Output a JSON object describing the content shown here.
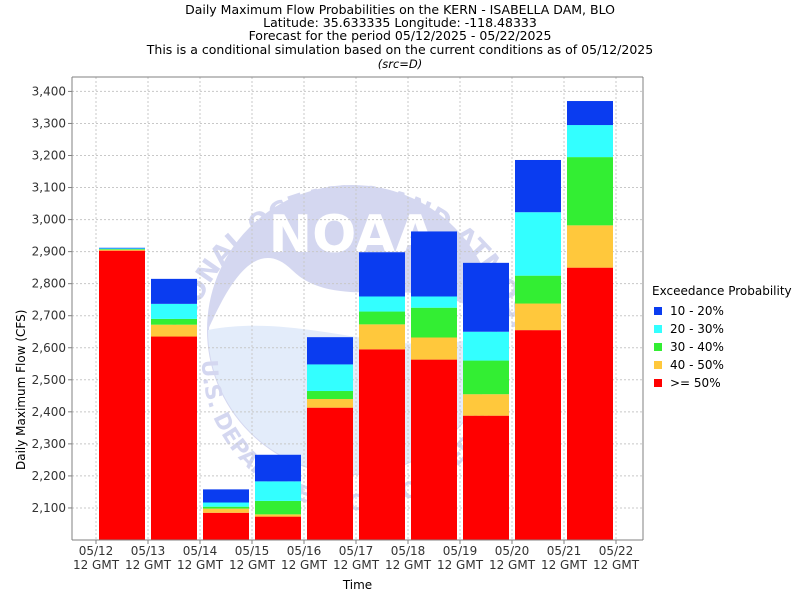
{
  "header": {
    "title": "Daily Maximum Flow Probabilities on the KERN - ISABELLA DAM, BLO",
    "location": "Latitude: 35.633335 Longitude: -118.48333",
    "period": "Forecast for the period 05/12/2025 - 05/22/2025",
    "condition": "This is a conditional simulation based on the current conditions as of 05/12/2025",
    "source": "(src=D)"
  },
  "watermark": {
    "logo_text": "NOAA",
    "ring_text_top": "NATIONAL OCEANIC AND ATMOSPHERIC ADMINISTRATION",
    "ring_text_bottom": "U.S. DEPARTMENT OF COMMERCE"
  },
  "chart_data": {
    "type": "bar",
    "stacked": true,
    "title": "Daily Maximum Flow Probabilities on the KERN - ISABELLA DAM, BLO",
    "xlabel": "Time",
    "ylabel": "Daily Maximum Flow (CFS)",
    "ylim": [
      2000,
      3445
    ],
    "yticks": [
      2100,
      2200,
      2300,
      2400,
      2500,
      2600,
      2700,
      2800,
      2900,
      3000,
      3100,
      3200,
      3300,
      3400
    ],
    "ytick_labels": [
      "2,100",
      "2,200",
      "2,300",
      "2,400",
      "2,500",
      "2,600",
      "2,700",
      "2,800",
      "2,900",
      "3,000",
      "3,100",
      "3,200",
      "3,300",
      "3,400"
    ],
    "xticks": [
      [
        "05/12",
        "12 GMT"
      ],
      [
        "05/13",
        "12 GMT"
      ],
      [
        "05/14",
        "12 GMT"
      ],
      [
        "05/15",
        "12 GMT"
      ],
      [
        "05/16",
        "12 GMT"
      ],
      [
        "05/17",
        "12 GMT"
      ],
      [
        "05/18",
        "12 GMT"
      ],
      [
        "05/19",
        "12 GMT"
      ],
      [
        "05/20",
        "12 GMT"
      ],
      [
        "05/21",
        "12 GMT"
      ],
      [
        "05/22",
        "12 GMT"
      ]
    ],
    "grid": true,
    "legend_title": "Exceedance Probability",
    "legend_position": "right",
    "bars": [
      {
        "date": "05/12",
        "p50": 2903,
        "p40": 2906,
        "p30": 2908,
        "p20": 2910,
        "p10": 2912
      },
      {
        "date": "05/13",
        "p50": 2635,
        "p40": 2672,
        "p30": 2690,
        "p20": 2737,
        "p10": 2815
      },
      {
        "date": "05/14",
        "p50": 2085,
        "p40": 2098,
        "p30": 2104,
        "p20": 2117,
        "p10": 2158
      },
      {
        "date": "05/15",
        "p50": 2073,
        "p40": 2080,
        "p30": 2122,
        "p20": 2183,
        "p10": 2266
      },
      {
        "date": "05/16",
        "p50": 2413,
        "p40": 2440,
        "p30": 2465,
        "p20": 2548,
        "p10": 2633
      },
      {
        "date": "05/17",
        "p50": 2595,
        "p40": 2673,
        "p30": 2713,
        "p20": 2760,
        "p10": 2898
      },
      {
        "date": "05/18",
        "p50": 2563,
        "p40": 2632,
        "p30": 2725,
        "p20": 2760,
        "p10": 2963
      },
      {
        "date": "05/19",
        "p50": 2388,
        "p40": 2455,
        "p30": 2560,
        "p20": 2650,
        "p10": 2865
      },
      {
        "date": "05/20",
        "p50": 2655,
        "p40": 2738,
        "p30": 2825,
        "p20": 3023,
        "p10": 3186
      },
      {
        "date": "05/21",
        "p50": 2850,
        "p40": 2982,
        "p30": 3195,
        "p20": 3295,
        "p10": 3370
      }
    ],
    "series": [
      {
        "key": "p10",
        "name": "10 - 20%",
        "color": "#0a3cf0"
      },
      {
        "key": "p20",
        "name": "20 - 30%",
        "color": "#33ffff"
      },
      {
        "key": "p30",
        "name": "30 - 40%",
        "color": "#33ee33"
      },
      {
        "key": "p40",
        "name": "40 - 50%",
        "color": "#ffc83c"
      },
      {
        "key": "p50",
        "name": ">= 50%",
        "color": "#ff0000"
      }
    ]
  }
}
